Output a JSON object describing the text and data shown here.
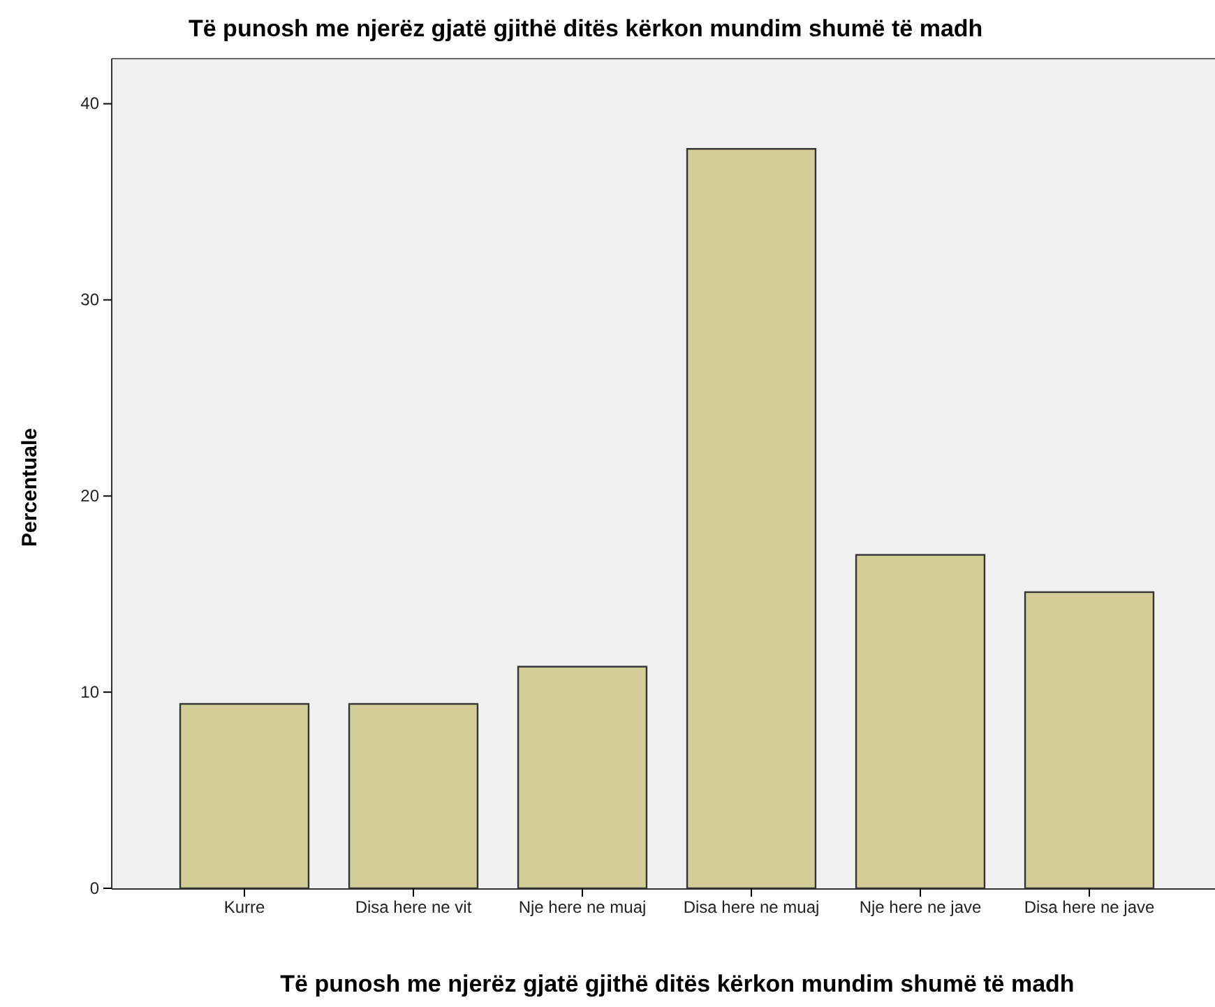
{
  "chart_data": {
    "type": "bar",
    "title": "Të punosh me njerëz gjatë gjithë ditës kërkon mundim shumë të madh",
    "xlabel": "Të punosh me njerëz gjatë gjithë ditës kërkon mundim shumë të madh",
    "ylabel": "Percentuale",
    "categories": [
      "Kurre",
      "Disa here ne vit",
      "Nje here ne muaj",
      "Disa here ne muaj",
      "Nje here ne jave",
      "Disa here ne jave"
    ],
    "values": [
      9.4,
      9.4,
      11.3,
      37.7,
      17.0,
      15.1
    ],
    "color": "#d3ce97",
    "ylim": [
      0,
      42.3
    ],
    "yticks": [
      0,
      10,
      20,
      30,
      40
    ],
    "grid": false
  }
}
